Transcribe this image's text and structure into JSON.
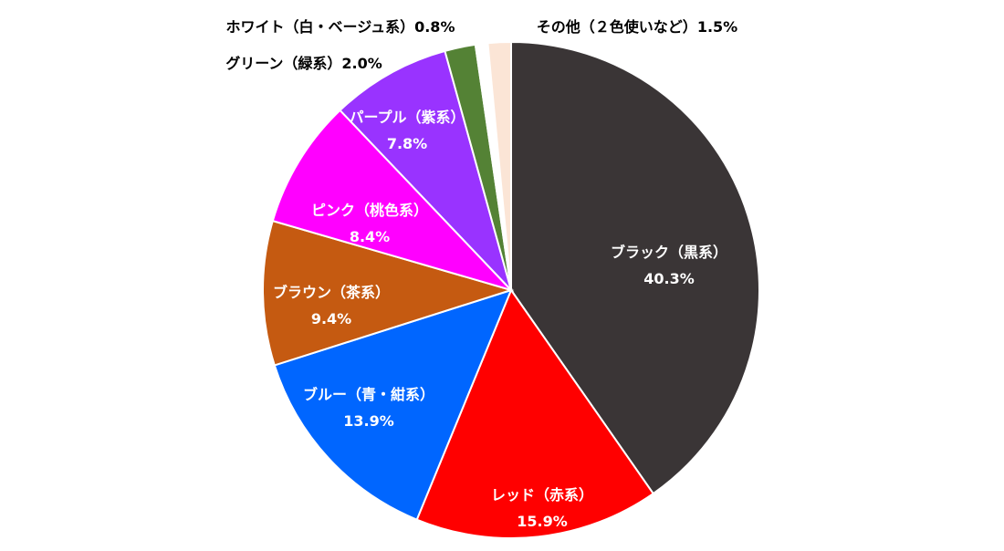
{
  "chart_data": {
    "type": "pie",
    "title": "",
    "unit": "%",
    "slices": [
      {
        "name": "ブラック（黒系）",
        "value": 40.3,
        "value_label": "40.3%",
        "color": "#3a3536",
        "label_color": "#ffffff",
        "label_placement": "inside"
      },
      {
        "name": "レッド（赤系）",
        "value": 15.9,
        "value_label": "15.9%",
        "color": "#ff0000",
        "label_color": "#ffffff",
        "label_placement": "inside"
      },
      {
        "name": "ブルー（青・紺系）",
        "value": 13.9,
        "value_label": "13.9%",
        "color": "#0066ff",
        "label_color": "#ffffff",
        "label_placement": "inside"
      },
      {
        "name": "ブラウン（茶系）",
        "value": 9.4,
        "value_label": "9.4%",
        "color": "#c55a11",
        "label_color": "#ffffff",
        "label_placement": "inside"
      },
      {
        "name": "ピンク（桃色系）",
        "value": 8.4,
        "value_label": "8.4%",
        "color": "#ff00ff",
        "label_color": "#ffffff",
        "label_placement": "inside"
      },
      {
        "name": "パープル（紫系）",
        "value": 7.8,
        "value_label": "7.8%",
        "color": "#9933ff",
        "label_color": "#ffffff",
        "label_placement": "inside"
      },
      {
        "name": "グリーン（緑系）",
        "value": 2.0,
        "value_label": "2.0%",
        "color": "#548235",
        "label_color": "#000000",
        "label_placement": "outside"
      },
      {
        "name": "ホワイト（白・ベージュ系）",
        "value": 0.8,
        "value_label": "0.8%",
        "color": "#ffffff",
        "label_color": "#000000",
        "label_placement": "outside"
      },
      {
        "name": "その他（２色使いなど）",
        "value": 1.5,
        "value_label": "1.5%",
        "color": "#fbe5d6",
        "label_color": "#000000",
        "label_placement": "outside"
      }
    ],
    "start": "12 o'clock",
    "direction": "clockwise",
    "slice_border_color": "#ffffff",
    "legend": "none"
  }
}
